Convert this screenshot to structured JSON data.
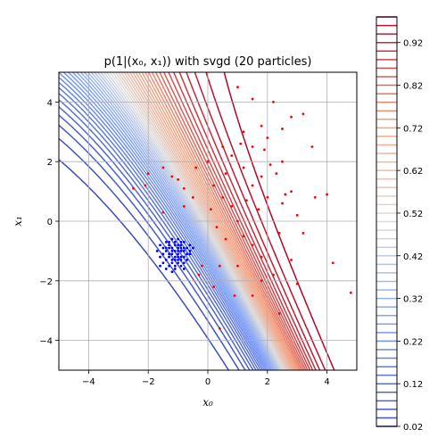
{
  "chart_data": {
    "type": "contour",
    "title": "p(1|(x₀, x₁)) with svgd (20 particles)",
    "xlabel": "x₀",
    "ylabel": "x₁",
    "xlim": [
      -5,
      5
    ],
    "ylim": [
      -5,
      5
    ],
    "xticks": [
      -4,
      -2,
      0,
      2,
      4
    ],
    "yticks": [
      -4,
      -2,
      0,
      2,
      4
    ],
    "grid": true,
    "colormap": "coolwarm",
    "contour_levels": {
      "min": 0.02,
      "max": 0.98,
      "step": 0.02
    },
    "colorbar": {
      "ticks": [
        0.02,
        0.12,
        0.22,
        0.32,
        0.42,
        0.52,
        0.62,
        0.72,
        0.82,
        0.92
      ],
      "tick_labels": [
        "0.02",
        "0.12",
        "0.22",
        "0.32",
        "0.42",
        "0.52",
        "0.62",
        "0.72",
        "0.82",
        "0.92"
      ]
    },
    "series": [
      {
        "color": "#0000ff",
        "points": [
          [
            -1.2,
            -0.9
          ],
          [
            -1.0,
            -1.1
          ],
          [
            -0.9,
            -0.8
          ],
          [
            -1.3,
            -1.2
          ],
          [
            -1.1,
            -0.7
          ],
          [
            -0.8,
            -1.0
          ],
          [
            -1.4,
            -0.9
          ],
          [
            -1.0,
            -1.3
          ],
          [
            -0.7,
            -0.9
          ],
          [
            -1.2,
            -1.4
          ],
          [
            -0.9,
            -1.2
          ],
          [
            -1.5,
            -1.1
          ],
          [
            -1.1,
            -1.0
          ],
          [
            -0.8,
            -0.7
          ],
          [
            -1.3,
            -0.8
          ],
          [
            -1.0,
            -0.6
          ],
          [
            -0.6,
            -1.1
          ],
          [
            -1.2,
            -1.1
          ],
          [
            -0.9,
            -1.5
          ],
          [
            -1.4,
            -1.3
          ],
          [
            -1.6,
            -0.8
          ],
          [
            -0.7,
            -1.3
          ],
          [
            -1.1,
            -1.6
          ],
          [
            -1.3,
            -1.5
          ],
          [
            -0.8,
            -1.2
          ],
          [
            -1.0,
            -0.9
          ],
          [
            -1.2,
            -0.6
          ],
          [
            -0.9,
            -1.0
          ],
          [
            -1.5,
            -1.4
          ],
          [
            -0.6,
            -0.8
          ],
          [
            -1.1,
            -1.3
          ],
          [
            -1.4,
            -1.0
          ],
          [
            -0.8,
            -1.4
          ],
          [
            -1.0,
            -1.2
          ],
          [
            -1.3,
            -0.7
          ],
          [
            -0.7,
            -1.1
          ],
          [
            -1.6,
            -1.2
          ],
          [
            -1.2,
            -1.7
          ],
          [
            -0.9,
            -0.7
          ],
          [
            -1.1,
            -0.8
          ],
          [
            -1.0,
            -1.4
          ],
          [
            -1.5,
            -0.9
          ],
          [
            -0.8,
            -0.9
          ],
          [
            -1.3,
            -1.1
          ],
          [
            -1.4,
            -0.7
          ],
          [
            -0.9,
            -1.3
          ],
          [
            -1.2,
            -1.0
          ],
          [
            -0.6,
            -1.0
          ],
          [
            -1.0,
            -1.0
          ],
          [
            -1.1,
            -1.2
          ],
          [
            -1.7,
            -1.0
          ],
          [
            -0.8,
            -1.6
          ],
          [
            -1.2,
            -1.3
          ],
          [
            -1.0,
            -0.8
          ],
          [
            -1.4,
            -1.6
          ],
          [
            -0.5,
            -0.9
          ],
          [
            -1.3,
            -0.9
          ],
          [
            -1.1,
            -1.5
          ],
          [
            -0.9,
            -0.9
          ],
          [
            -1.6,
            -1.5
          ]
        ]
      },
      {
        "color": "#ff0000",
        "points": [
          [
            1.2,
            3.0
          ],
          [
            1.5,
            2.5
          ],
          [
            2.0,
            2.8
          ],
          [
            1.8,
            1.5
          ],
          [
            2.5,
            2.0
          ],
          [
            1.0,
            4.5
          ],
          [
            1.5,
            4.1
          ],
          [
            2.2,
            4.0
          ],
          [
            2.8,
            3.5
          ],
          [
            3.2,
            3.6
          ],
          [
            2.5,
            3.1
          ],
          [
            1.8,
            3.2
          ],
          [
            0.5,
            2.5
          ],
          [
            0.8,
            2.2
          ],
          [
            1.2,
            1.8
          ],
          [
            1.5,
            1.2
          ],
          [
            2.0,
            0.8
          ],
          [
            2.5,
            0.6
          ],
          [
            3.0,
            0.2
          ],
          [
            2.8,
            1.0
          ],
          [
            0.2,
            1.2
          ],
          [
            0.5,
            0.8
          ],
          [
            0.8,
            0.5
          ],
          [
            1.0,
            0.0
          ],
          [
            1.2,
            -0.5
          ],
          [
            1.5,
            -0.8
          ],
          [
            1.8,
            -1.2
          ],
          [
            0.3,
            -0.2
          ],
          [
            0.6,
            -0.6
          ],
          [
            0.4,
            -1.5
          ],
          [
            -0.5,
            0.8
          ],
          [
            -0.8,
            0.5
          ],
          [
            -1.2,
            1.5
          ],
          [
            -2.5,
            1.1
          ],
          [
            -2.1,
            1.2
          ],
          [
            -1.5,
            0.3
          ],
          [
            3.5,
            2.5
          ],
          [
            3.6,
            0.8
          ],
          [
            4.0,
            0.9
          ],
          [
            4.2,
            -1.4
          ],
          [
            2.8,
            -1.3
          ],
          [
            3.2,
            -0.4
          ],
          [
            3.0,
            -2.1
          ],
          [
            2.4,
            -3.1
          ],
          [
            0.4,
            -3.6
          ],
          [
            1.5,
            -2.5
          ],
          [
            1.8,
            -2.0
          ],
          [
            2.2,
            -1.8
          ],
          [
            0.2,
            -2.2
          ],
          [
            -0.3,
            -1.8
          ],
          [
            1.0,
            -1.5
          ],
          [
            0.9,
            -2.5
          ],
          [
            -0.2,
            -1.5
          ],
          [
            2.6,
            0.9
          ],
          [
            2.3,
            1.6
          ],
          [
            2.1,
            1.9
          ],
          [
            1.9,
            2.4
          ],
          [
            0.0,
            2.0
          ],
          [
            -0.4,
            1.8
          ],
          [
            -1.0,
            1.4
          ],
          [
            0.1,
            0.4
          ],
          [
            0.6,
            1.6
          ],
          [
            1.3,
            0.7
          ],
          [
            1.7,
            0.4
          ],
          [
            2.4,
            -0.4
          ],
          [
            -1.5,
            1.8
          ],
          [
            -2.0,
            1.6
          ],
          [
            -0.8,
            1.1
          ],
          [
            4.8,
            -2.4
          ],
          [
            1.1,
            2.6
          ]
        ]
      }
    ]
  }
}
